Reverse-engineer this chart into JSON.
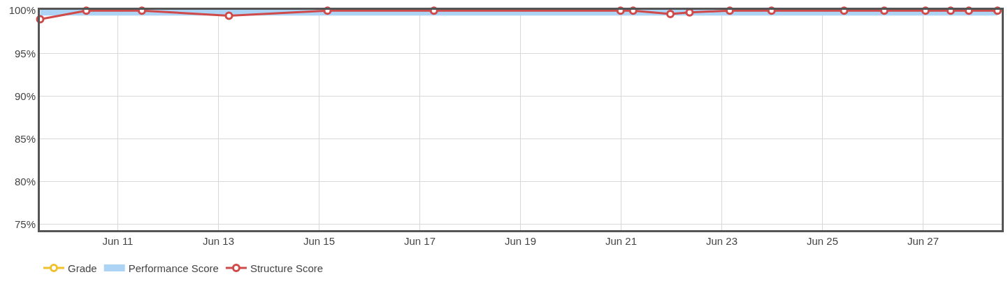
{
  "chart_data": {
    "type": "line",
    "x": [
      "--06-09T11:00",
      "--06-10T09:00",
      "--06-11T11:30",
      "--06-13T05:00",
      "--06-15T04:00",
      "--06-17T06:45",
      "--06-20T23:45",
      "--06-21T05:45",
      "--06-21T23:30",
      "--06-22T08:40",
      "--06-23T03:50",
      "--06-23T23:45",
      "--06-25T10:20",
      "--06-26T05:30",
      "--06-27T01:10",
      "--06-27T13:10",
      "--06-27T21:50",
      "--06-28T11:30"
    ],
    "series": [
      {
        "name": "Grade",
        "color": "#f0c02f",
        "values": [
          null,
          null,
          null,
          null,
          null,
          null,
          null,
          null,
          null,
          null,
          null,
          null,
          null,
          null,
          null,
          null,
          null,
          null
        ]
      },
      {
        "name": "Performance Score",
        "color": "#aed4f5",
        "marker": "none",
        "values": [
          100,
          100,
          100,
          100,
          100,
          100,
          100,
          100,
          100,
          100,
          100,
          100,
          100,
          100,
          100,
          100,
          100,
          100
        ]
      },
      {
        "name": "Structure Score",
        "color": "#d04a4a",
        "values": [
          99,
          100,
          100,
          99.4,
          100,
          100,
          100,
          100,
          99.6,
          99.8,
          100,
          100,
          100,
          100,
          100,
          100,
          100,
          100
        ]
      }
    ],
    "xlim": [
      "--06-09T10:50",
      "--06-28T13:30"
    ],
    "xticks": [
      {
        "value": "--06-11",
        "label": "Jun 11"
      },
      {
        "value": "--06-13",
        "label": "Jun 13"
      },
      {
        "value": "--06-15",
        "label": "Jun 15"
      },
      {
        "value": "--06-17",
        "label": "Jun 17"
      },
      {
        "value": "--06-19",
        "label": "Jun 19"
      },
      {
        "value": "--06-21",
        "label": "Jun 21"
      },
      {
        "value": "--06-23",
        "label": "Jun 23"
      },
      {
        "value": "--06-25",
        "label": "Jun 25"
      },
      {
        "value": "--06-27",
        "label": "Jun 27"
      }
    ],
    "ylim": [
      74.3,
      100.1
    ],
    "yticks": [
      {
        "value": 75,
        "label": "75%"
      },
      {
        "value": 80,
        "label": "80%"
      },
      {
        "value": 85,
        "label": "85%"
      },
      {
        "value": 90,
        "label": "90%"
      },
      {
        "value": 95,
        "label": "95%"
      },
      {
        "value": 100,
        "label": "100%"
      }
    ],
    "grid": true,
    "legend": "bottom",
    "marker": "circle",
    "line_style": "solid"
  }
}
